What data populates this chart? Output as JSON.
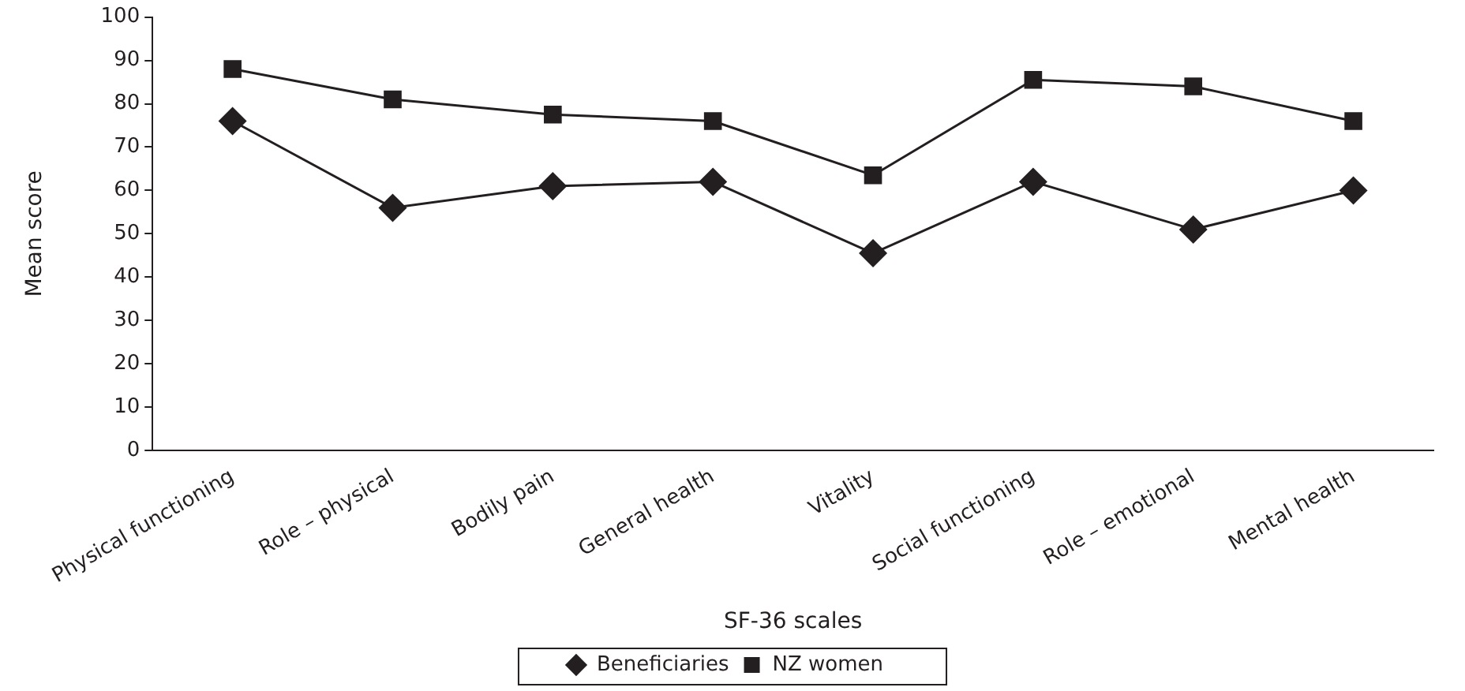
{
  "chart_data": {
    "type": "line",
    "xlabel": "SF-36 scales",
    "ylabel": "Mean score",
    "categories": [
      "Physical functioning",
      "Role – physical",
      "Bodily pain",
      "General health",
      "Vitality",
      "Social functioning",
      "Role – emotional",
      "Mental health"
    ],
    "series": [
      {
        "name": "Beneficiaries",
        "color": "#231f20",
        "marker": "diamond",
        "values": [
          76,
          56,
          61,
          62,
          45.5,
          62,
          51,
          60
        ]
      },
      {
        "name": "NZ women",
        "color": "#231f20",
        "marker": "square",
        "values": [
          88,
          81,
          77.5,
          76,
          63.5,
          85.5,
          84,
          76
        ]
      }
    ],
    "ylim": [
      0,
      100
    ],
    "yticks": [
      0,
      10,
      20,
      30,
      40,
      50,
      60,
      70,
      80,
      90,
      100
    ],
    "grid": false,
    "legend": "bottom",
    "line_style": "solid"
  }
}
